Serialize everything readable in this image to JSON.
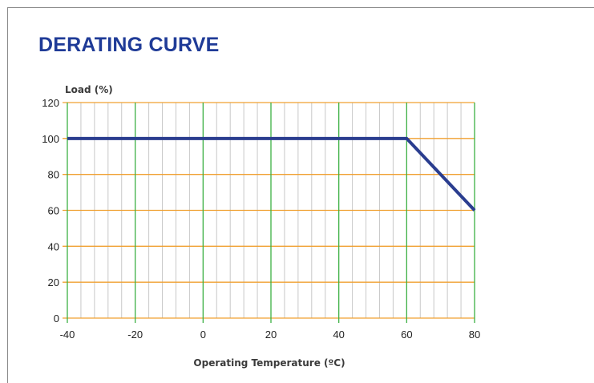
{
  "chart_data": {
    "type": "line",
    "title": "DERATING CURVE",
    "xlabel": "Operating Temperature (ºC)",
    "ylabel": "Load (%)",
    "xlim": [
      -40,
      80
    ],
    "ylim": [
      0,
      120
    ],
    "xticks": [
      -40,
      -20,
      0,
      20,
      40,
      60,
      80
    ],
    "yticks": [
      0,
      20,
      40,
      60,
      80,
      100,
      120
    ],
    "grid": true,
    "series": [
      {
        "x": [
          -40,
          60,
          80
        ],
        "y": [
          100,
          100,
          60
        ]
      }
    ],
    "colors": {
      "title": "#1f3b97",
      "line": "#2a3d8f",
      "major_vertical_grid": "#3cb043",
      "horizontal_grid": "#f0a030",
      "minor_vertical_grid": "#c8c8c8"
    }
  }
}
